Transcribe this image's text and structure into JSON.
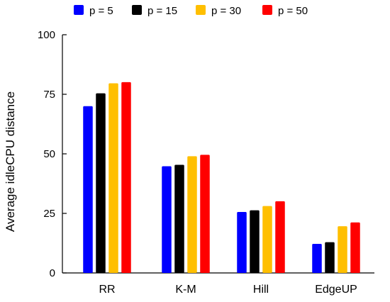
{
  "chart_data": {
    "type": "bar",
    "categories": [
      "RR",
      "K-M",
      "Hill",
      "EdgeUP"
    ],
    "series": [
      {
        "name": "p = 5",
        "color": "#0000ff",
        "values": [
          70,
          44.8,
          25.6,
          12.2
        ]
      },
      {
        "name": "p = 15",
        "color": "#000000",
        "values": [
          75.4,
          45.4,
          26.3,
          12.9
        ]
      },
      {
        "name": "p = 30",
        "color": "#ffbf00",
        "values": [
          79.6,
          49,
          28.1,
          19.6
        ]
      },
      {
        "name": "p = 50",
        "color": "#ff0000",
        "values": [
          80.1,
          49.6,
          30.1,
          21.2
        ]
      }
    ],
    "ylabel": "Average idleCPU distance",
    "xlabel": "",
    "title": "",
    "ylim": [
      0,
      100
    ],
    "yticks": [
      "0",
      "25",
      "50",
      "75",
      "100"
    ],
    "legend_position": "top",
    "grid": false
  }
}
